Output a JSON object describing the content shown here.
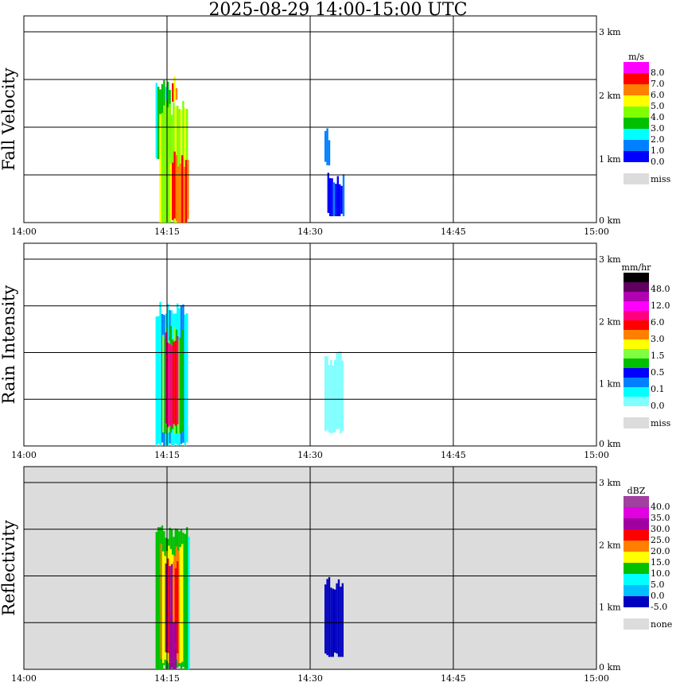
{
  "title": "2025-08-29  14:00-15:00 UTC",
  "chart_data": [
    {
      "type": "heatmap",
      "title": "Fall Velocity",
      "ylabel": "Fall Velocity",
      "unit": "m/s",
      "x_ticks": [
        "14:00",
        "14:15",
        "14:30",
        "14:45",
        "15:00"
      ],
      "y_ticks": [
        "0 km",
        "1 km",
        "2 km",
        "3 km"
      ],
      "ylim_km": [
        0,
        3
      ],
      "background": "#ffffff",
      "legend": {
        "labels": [
          "8.0",
          "7.0",
          "6.0",
          "5.0",
          "4.0",
          "3.0",
          "2.0",
          "1.0",
          "0.0"
        ],
        "colors": [
          "#ff00ff",
          "#ff0000",
          "#ff8000",
          "#ffff00",
          "#80ff00",
          "#00c000",
          "#00ffff",
          "#0080ff",
          "#0000ff"
        ],
        "miss_label": "miss",
        "miss_color": "#dcdcdc"
      },
      "echoes": [
        {
          "t0": 13.8,
          "t1": 15.3,
          "bottom_km": 1.0,
          "top_km": 2.2,
          "value": 3.5
        },
        {
          "t0": 14.2,
          "t1": 17.0,
          "bottom_km": 0.0,
          "top_km": 1.8,
          "value": 5.0
        },
        {
          "t0": 15.3,
          "t1": 17.2,
          "bottom_km": 0.0,
          "top_km": 1.0,
          "value": 6.5
        },
        {
          "t0": 15.5,
          "t1": 16.0,
          "bottom_km": 1.9,
          "top_km": 2.2,
          "value": 6.5
        },
        {
          "t0": 31.5,
          "t1": 32.0,
          "bottom_km": 0.9,
          "top_km": 1.4,
          "value": 1.5
        },
        {
          "t0": 31.8,
          "t1": 33.5,
          "bottom_km": 0.1,
          "top_km": 0.7,
          "value": 1.0
        }
      ]
    },
    {
      "type": "heatmap",
      "title": "Rain Intensity",
      "ylabel": "Rain Intensity",
      "unit": "mm/hr",
      "x_ticks": [
        "14:00",
        "14:15",
        "14:30",
        "14:45",
        "15:00"
      ],
      "y_ticks": [
        "0 km",
        "1 km",
        "2 km",
        "3 km"
      ],
      "ylim_km": [
        0,
        3
      ],
      "background": "#ffffff",
      "legend": {
        "labels": [
          "48.0",
          "12.0",
          "6.0",
          "3.0",
          "1.5",
          "0.5",
          "0.1",
          "0.0"
        ],
        "colors": [
          "#000000",
          "#600060",
          "#b000b0",
          "#ff00ff",
          "#ff0080",
          "#ff0000",
          "#ff8000",
          "#ffff00",
          "#80ff40",
          "#00c000",
          "#0000ff",
          "#0080ff",
          "#00ffff",
          "#80ffff"
        ],
        "miss_label": "miss",
        "miss_color": "#dcdcdc"
      },
      "echoes": [
        {
          "t0": 13.8,
          "t1": 17.0,
          "bottom_km": 0.0,
          "top_km": 2.2,
          "value": 0.3
        },
        {
          "t0": 14.5,
          "t1": 16.5,
          "bottom_km": 0.2,
          "top_km": 1.8,
          "value": 1.5
        },
        {
          "t0": 14.8,
          "t1": 16.0,
          "bottom_km": 0.3,
          "top_km": 1.7,
          "value": 6.0
        },
        {
          "t0": 31.5,
          "t1": 33.5,
          "bottom_km": 0.2,
          "top_km": 1.4,
          "value": 0.05
        }
      ]
    },
    {
      "type": "heatmap",
      "title": "Reflectivity",
      "ylabel": "Reflectivity",
      "unit": "dBZ",
      "x_ticks": [
        "14:00",
        "14:15",
        "14:30",
        "14:45",
        "15:00"
      ],
      "y_ticks": [
        "0 km",
        "1 km",
        "2 km",
        "3 km"
      ],
      "ylim_km": [
        0,
        3
      ],
      "background": "#dcdcdc",
      "legend": {
        "labels": [
          "40.0",
          "35.0",
          "30.0",
          "25.0",
          "20.0",
          "15.0",
          "10.0",
          "5.0",
          "0.0",
          "-5.0"
        ],
        "colors": [
          "#a040a0",
          "#e000e0",
          "#a000a0",
          "#ff0000",
          "#ff8000",
          "#ffff00",
          "#00c000",
          "#00ffff",
          "#00c0ff",
          "#0000c0"
        ],
        "miss_label": "none",
        "miss_color": "#dcdcdc"
      },
      "echoes": [
        {
          "t0": 13.8,
          "t1": 17.2,
          "bottom_km": 0.0,
          "top_km": 2.2,
          "value": 12
        },
        {
          "t0": 14.3,
          "t1": 16.5,
          "bottom_km": 0.1,
          "top_km": 1.9,
          "value": 22
        },
        {
          "t0": 14.8,
          "t1": 16.0,
          "bottom_km": 0.2,
          "top_km": 1.7,
          "value": 28
        },
        {
          "t0": 15.2,
          "t1": 15.9,
          "bottom_km": 0.0,
          "top_km": 0.8,
          "value": 38
        },
        {
          "t0": 31.5,
          "t1": 33.5,
          "bottom_km": 0.2,
          "top_km": 1.4,
          "value": -3
        }
      ]
    }
  ]
}
